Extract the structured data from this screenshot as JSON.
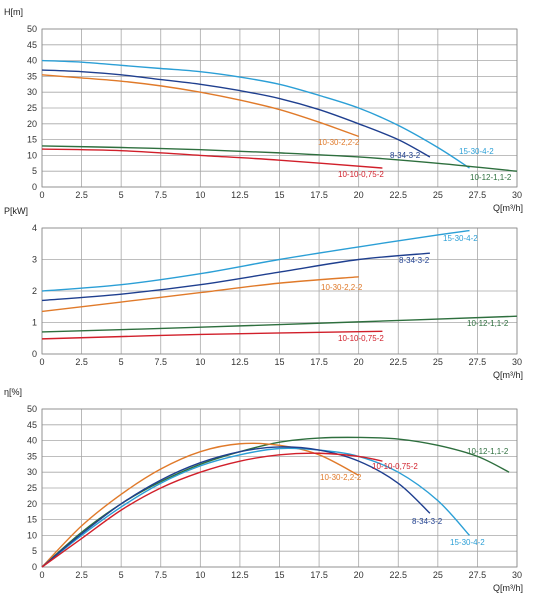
{
  "colors": {
    "15-30-4-2": "#2b9fd6",
    "8-34-3-2": "#1f3f8f",
    "10-30-2,2-2": "#e07a2a",
    "10-12-1,1-2": "#2e6f3e",
    "10-10-0,75-2": "#d11f2a"
  },
  "chart_data": [
    {
      "type": "line",
      "ylabel": "H[m]",
      "xlabel": "Q[m³/h]",
      "xlim": [
        0,
        30
      ],
      "ylim": [
        0,
        50
      ],
      "x_ticks": [
        "0",
        "2.5",
        "5",
        "7.5",
        "10",
        "12.5",
        "15",
        "17.5",
        "20",
        "22.5",
        "25",
        "27.5",
        "30"
      ],
      "y_ticks": [
        "0",
        "5",
        "10",
        "15",
        "20",
        "25",
        "30",
        "35",
        "40",
        "45",
        "50"
      ],
      "grid": true,
      "series": [
        {
          "name": "15-30-4-2",
          "x": [
            0,
            2.5,
            5,
            7.5,
            10,
            12.5,
            15,
            17.5,
            20,
            22.5,
            25,
            27
          ],
          "y": [
            40,
            39.5,
            38.5,
            37.5,
            36.5,
            34.8,
            32.5,
            29,
            25,
            19.5,
            12.5,
            6
          ]
        },
        {
          "name": "8-34-3-2",
          "x": [
            0,
            2.5,
            5,
            7.5,
            10,
            12.5,
            15,
            17.5,
            20,
            22.5,
            24.5
          ],
          "y": [
            37,
            36.5,
            35.5,
            34,
            32.5,
            30.5,
            28,
            24.5,
            20,
            15,
            9.5
          ]
        },
        {
          "name": "10-30-2,2-2",
          "x": [
            0,
            2.5,
            5,
            7.5,
            10,
            12.5,
            15,
            17.5,
            20
          ],
          "y": [
            35.5,
            34.5,
            33.5,
            32,
            30,
            27.5,
            24.5,
            20.5,
            16
          ]
        },
        {
          "name": "10-12-1,1-2",
          "x": [
            0,
            5,
            10,
            15,
            20,
            25,
            30
          ],
          "y": [
            13,
            12.5,
            11.8,
            10.8,
            9.5,
            7.5,
            5
          ]
        },
        {
          "name": "10-10-0,75-2",
          "x": [
            0,
            5,
            10,
            15,
            21.5
          ],
          "y": [
            12,
            11.5,
            10,
            8.5,
            6
          ]
        }
      ]
    },
    {
      "type": "line",
      "ylabel": "P[kW]",
      "xlabel": "Q[m³/h]",
      "xlim": [
        0,
        30
      ],
      "ylim": [
        0,
        4
      ],
      "x_ticks": [
        "0",
        "2.5",
        "5",
        "7.5",
        "10",
        "12.5",
        "15",
        "17.5",
        "20",
        "22.5",
        "25",
        "27.5",
        "30"
      ],
      "y_ticks": [
        "0",
        "1",
        "2",
        "3",
        "4"
      ],
      "grid": true,
      "series": [
        {
          "name": "15-30-4-2",
          "x": [
            0,
            5,
            10,
            15,
            20,
            25,
            27
          ],
          "y": [
            2,
            2.2,
            2.55,
            3.0,
            3.4,
            3.78,
            3.92
          ]
        },
        {
          "name": "8-34-3-2",
          "x": [
            0,
            5,
            10,
            15,
            20,
            24.5
          ],
          "y": [
            1.7,
            1.9,
            2.2,
            2.6,
            3.0,
            3.2
          ]
        },
        {
          "name": "10-30-2,2-2",
          "x": [
            0,
            5,
            10,
            15,
            20
          ],
          "y": [
            1.35,
            1.65,
            1.95,
            2.25,
            2.45
          ]
        },
        {
          "name": "10-12-1,1-2",
          "x": [
            0,
            10,
            20,
            30
          ],
          "y": [
            0.7,
            0.85,
            1.02,
            1.2
          ]
        },
        {
          "name": "10-10-0,75-2",
          "x": [
            0,
            10,
            21.5
          ],
          "y": [
            0.48,
            0.62,
            0.72
          ]
        }
      ]
    },
    {
      "type": "line",
      "ylabel": "η[%]",
      "xlabel": "Q[m³/h]",
      "xlim": [
        0,
        30
      ],
      "ylim": [
        0,
        50
      ],
      "x_ticks": [
        "0",
        "2.5",
        "5",
        "7.5",
        "10",
        "12.5",
        "15",
        "17.5",
        "20",
        "22.5",
        "25",
        "27.5",
        "30"
      ],
      "y_ticks": [
        "0",
        "5",
        "10",
        "15",
        "20",
        "25",
        "30",
        "35",
        "40",
        "45",
        "50"
      ],
      "grid": true,
      "series": [
        {
          "name": "10-12-1,1-2",
          "x": [
            0,
            2.5,
            5,
            7.5,
            10,
            12.5,
            15,
            17.5,
            20,
            22.5,
            25,
            27.5,
            29.5
          ],
          "y": [
            0,
            11,
            20,
            27,
            32.5,
            36.5,
            39.5,
            40.8,
            41,
            40.5,
            38.5,
            35,
            30
          ]
        },
        {
          "name": "10-30-2,2-2",
          "x": [
            0,
            2.5,
            5,
            7.5,
            10,
            12.5,
            15,
            17.5,
            20
          ],
          "y": [
            0,
            13,
            23,
            31,
            36.5,
            39,
            38.5,
            35.5,
            29
          ]
        },
        {
          "name": "15-30-4-2",
          "x": [
            0,
            2.5,
            5,
            7.5,
            10,
            12.5,
            15,
            17.5,
            20,
            22.5,
            25,
            27
          ],
          "y": [
            0,
            10,
            19,
            26.5,
            32,
            35.5,
            37.5,
            37,
            35,
            30,
            21,
            10
          ]
        },
        {
          "name": "8-34-3-2",
          "x": [
            0,
            2.5,
            5,
            7.5,
            10,
            12.5,
            15,
            17.5,
            20,
            22.5,
            24.5
          ],
          "y": [
            0,
            10.5,
            20,
            27.5,
            33,
            36.5,
            38,
            37,
            33.5,
            26.5,
            17
          ]
        },
        {
          "name": "10-10-0,75-2",
          "x": [
            0,
            2.5,
            5,
            7.5,
            10,
            12.5,
            15,
            17.5,
            20,
            21.5
          ],
          "y": [
            0,
            9,
            18,
            25,
            30,
            33.5,
            35.5,
            36,
            35,
            33.5
          ]
        }
      ]
    }
  ]
}
